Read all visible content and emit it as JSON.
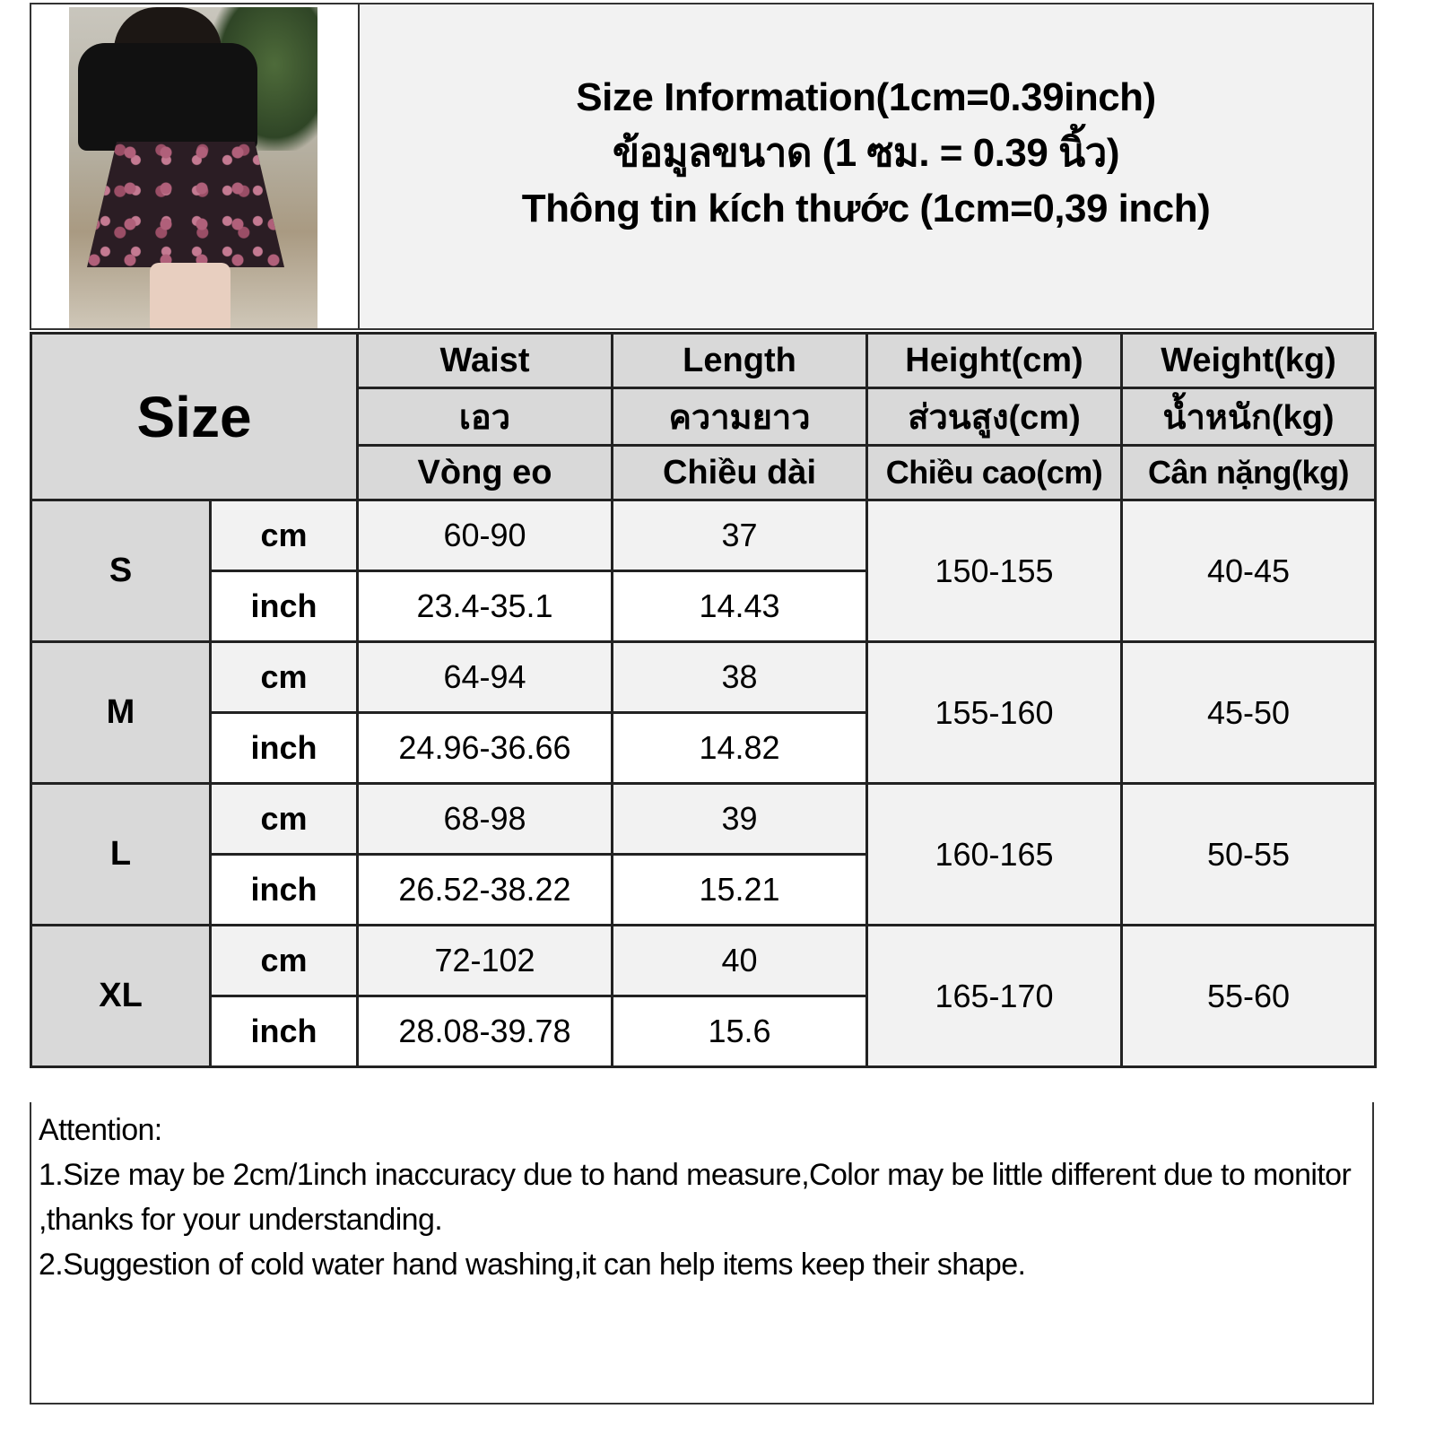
{
  "title": {
    "line1": "Size Information(1cm=0.39inch)",
    "line2": "ข้อมูลขนาด (1 ซม. = 0.39 นิ้ว)",
    "line3": "Thông tin kích thước (1cm=0,39 inch)"
  },
  "table": {
    "size_label": "Size",
    "columns": [
      {
        "en": "Waist",
        "th": "เอว",
        "vi": "Vòng eo"
      },
      {
        "en": "Length",
        "th": "ความยาว",
        "vi": "Chiều dài"
      },
      {
        "en": "Height(cm)",
        "th": "ส่วนสูง(cm)",
        "vi": "Chiều cao(cm)"
      },
      {
        "en": "Weight(kg)",
        "th": "น้ำหนัก(kg)",
        "vi": "Cân nặng(kg)"
      }
    ],
    "units": {
      "cm": "cm",
      "inch": "inch"
    },
    "rows": [
      {
        "size": "S",
        "waist_cm": "60-90",
        "length_cm": "37",
        "waist_inch": "23.4-35.1",
        "length_inch": "14.43",
        "height": "150-155",
        "weight": "40-45"
      },
      {
        "size": "M",
        "waist_cm": "64-94",
        "length_cm": "38",
        "waist_inch": "24.96-36.66",
        "length_inch": "14.82",
        "height": "155-160",
        "weight": "45-50"
      },
      {
        "size": "L",
        "waist_cm": "68-98",
        "length_cm": "39",
        "waist_inch": "26.52-38.22",
        "length_inch": "15.21",
        "height": "160-165",
        "weight": "50-55"
      },
      {
        "size": "XL",
        "waist_cm": "72-102",
        "length_cm": "40",
        "waist_inch": "28.08-39.78",
        "length_inch": "15.6",
        "height": "165-170",
        "weight": "55-60"
      }
    ]
  },
  "notes": {
    "heading": "Attention:",
    "items": [
      "1.Size may be 2cm/1inch inaccuracy due to hand measure,Color may be little different due to monitor ,thanks for your understanding.",
      "2.Suggestion of cold water hand washing,it can help items keep their shape."
    ]
  },
  "colors": {
    "header_bg": "#d9d9d9",
    "cm_row_bg": "#f2f2f2",
    "inch_row_bg": "#ffffff",
    "border": "#222222"
  }
}
